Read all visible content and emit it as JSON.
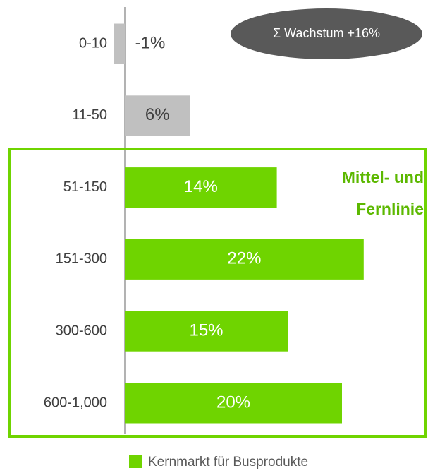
{
  "chart_data": {
    "type": "bar",
    "orientation": "horizontal",
    "categories": [
      "0-10",
      "11-50",
      "51-150",
      "151-300",
      "300-600",
      "600-1,000"
    ],
    "values": [
      -1,
      6,
      14,
      22,
      15,
      20
    ],
    "value_labels": [
      "-1%",
      "6%",
      "14%",
      "22%",
      "15%",
      "20%"
    ],
    "colors": [
      "#c0c0c0",
      "#c0c0c0",
      "#6fd400",
      "#6fd400",
      "#6fd400",
      "#6fd400"
    ],
    "annotations": [
      "Σ Wachstum +16%",
      "Mittel- und",
      "Fernlinie"
    ],
    "legend": {
      "label": "Kernmarkt für Busprodukte",
      "color": "#6fd400"
    }
  }
}
